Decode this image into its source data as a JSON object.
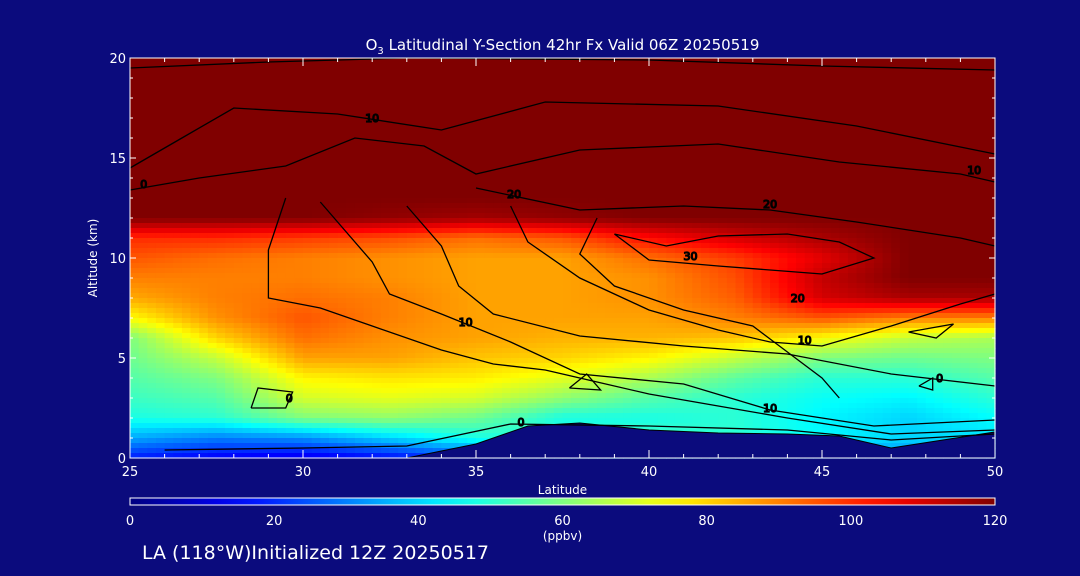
{
  "chart_data": {
    "type": "heatmap",
    "title": "Latitudinal Y-Section 42hr  Fx Valid 06Z 20250519",
    "title_species": "O",
    "title_species_sub": "3",
    "xlabel": "Latitude",
    "ylabel": "Altitude (km)",
    "xlim": [
      25,
      50
    ],
    "ylim": [
      0,
      20
    ],
    "x_ticks": [
      "25",
      "30",
      "35",
      "40",
      "45",
      "50"
    ],
    "y_ticks": [
      "0",
      "5",
      "10",
      "15",
      "20"
    ],
    "colorbar": {
      "min": 0,
      "max": 120,
      "ticks": [
        "0",
        "20",
        "40",
        "60",
        "80",
        "100",
        "120"
      ],
      "unit_label": "(ppbv)",
      "colormap": "jet"
    },
    "grid_latitudes": [
      25,
      27.5,
      30,
      32.5,
      35,
      37.5,
      40,
      42.5,
      45,
      47.5,
      50
    ],
    "grid_altitudes_km": [
      0,
      1,
      2,
      3,
      4,
      5,
      6,
      7,
      8,
      9,
      10,
      11,
      12,
      13,
      14,
      15,
      16,
      17,
      18,
      19,
      20
    ],
    "ozone_ppbv": [
      [
        18,
        14,
        12,
        16,
        22,
        40,
        45,
        38,
        32,
        30,
        35
      ],
      [
        35,
        30,
        32,
        40,
        48,
        50,
        52,
        50,
        45,
        40,
        42
      ],
      [
        48,
        50,
        60,
        62,
        58,
        48,
        48,
        50,
        44,
        40,
        45
      ],
      [
        52,
        55,
        70,
        72,
        70,
        62,
        55,
        50,
        46,
        44,
        50
      ],
      [
        55,
        60,
        76,
        78,
        77,
        72,
        65,
        56,
        50,
        50,
        55
      ],
      [
        58,
        68,
        86,
        86,
        82,
        80,
        76,
        68,
        60,
        58,
        60
      ],
      [
        60,
        80,
        92,
        88,
        86,
        84,
        84,
        82,
        75,
        68,
        65
      ],
      [
        75,
        88,
        95,
        90,
        86,
        86,
        86,
        90,
        95,
        90,
        90
      ],
      [
        85,
        90,
        92,
        90,
        86,
        86,
        88,
        94,
        110,
        115,
        115
      ],
      [
        90,
        90,
        90,
        88,
        86,
        86,
        88,
        96,
        112,
        120,
        120
      ],
      [
        95,
        92,
        90,
        88,
        86,
        86,
        92,
        98,
        108,
        120,
        120
      ],
      [
        100,
        100,
        98,
        96,
        92,
        95,
        104,
        110,
        115,
        120,
        120
      ],
      [
        120,
        120,
        120,
        118,
        116,
        118,
        120,
        120,
        120,
        120,
        120
      ],
      [
        120,
        120,
        120,
        120,
        120,
        120,
        120,
        120,
        120,
        120,
        120
      ],
      [
        120,
        120,
        120,
        120,
        120,
        120,
        120,
        120,
        120,
        120,
        120
      ],
      [
        120,
        120,
        120,
        120,
        120,
        120,
        120,
        120,
        120,
        120,
        120
      ],
      [
        120,
        120,
        120,
        120,
        120,
        120,
        120,
        120,
        120,
        120,
        120
      ],
      [
        120,
        120,
        120,
        120,
        120,
        120,
        120,
        120,
        120,
        120,
        120
      ],
      [
        120,
        120,
        120,
        120,
        120,
        120,
        120,
        120,
        120,
        120,
        120
      ],
      [
        120,
        120,
        120,
        120,
        120,
        120,
        120,
        120,
        120,
        120,
        120
      ],
      [
        120,
        120,
        120,
        120,
        120,
        120,
        120,
        120,
        120,
        120,
        120
      ]
    ],
    "terrain_km": [
      {
        "lat": 33.0,
        "alt": 0
      },
      {
        "lat": 35.0,
        "alt": 0.7
      },
      {
        "lat": 36.5,
        "alt": 1.6
      },
      {
        "lat": 38.0,
        "alt": 1.75
      },
      {
        "lat": 40.0,
        "alt": 1.4
      },
      {
        "lat": 42.0,
        "alt": 1.25
      },
      {
        "lat": 44.0,
        "alt": 1.2
      },
      {
        "lat": 45.5,
        "alt": 1.1
      },
      {
        "lat": 47.0,
        "alt": 0.5
      },
      {
        "lat": 50.0,
        "alt": 1.3
      }
    ],
    "contour_labels": [
      {
        "text": "0",
        "lat": 25.4,
        "alt": 13.5
      },
      {
        "text": "10",
        "lat": 32.0,
        "alt": 16.8
      },
      {
        "text": "20",
        "lat": 36.1,
        "alt": 13.0
      },
      {
        "text": "20",
        "lat": 43.5,
        "alt": 12.5
      },
      {
        "text": "10",
        "lat": 49.4,
        "alt": 14.2
      },
      {
        "text": "30",
        "lat": 41.2,
        "alt": 9.9
      },
      {
        "text": "20",
        "lat": 44.3,
        "alt": 7.8
      },
      {
        "text": "10",
        "lat": 44.5,
        "alt": 5.7
      },
      {
        "text": "10",
        "lat": 34.7,
        "alt": 6.6
      },
      {
        "text": "0",
        "lat": 29.6,
        "alt": 2.8
      },
      {
        "text": "0",
        "lat": 36.3,
        "alt": 1.6
      },
      {
        "text": "10",
        "lat": 43.5,
        "alt": 2.3
      },
      {
        "text": "0",
        "lat": 48.4,
        "alt": 3.8
      }
    ],
    "colors": {
      "background": "#0b0b7d",
      "contour": "#000000",
      "terrain": "#0b0b7d",
      "axes": "#ffffff"
    }
  },
  "footer": {
    "text": "LA (118°W)Initialized 12Z 20250517"
  }
}
